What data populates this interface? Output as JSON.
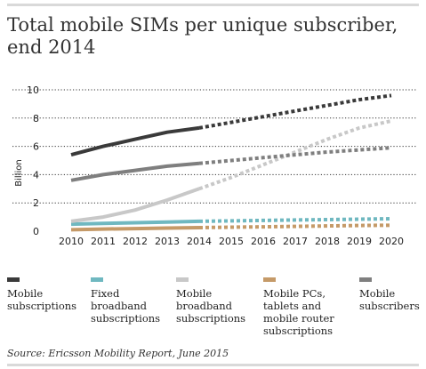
{
  "title": "Total mobile SIMs per unique subscriber, end 2014",
  "source": "Source: Ericsson Mobility Report, June 2015",
  "chart_data": {
    "type": "line",
    "title": "Total mobile SIMs per unique subscriber, end 2014",
    "ylabel": "Billion",
    "xlabel": "",
    "ylim": [
      0,
      10
    ],
    "yticks": [
      0,
      2,
      4,
      6,
      8,
      10
    ],
    "x": [
      2010,
      2011,
      2012,
      2013,
      2014,
      2015,
      2016,
      2017,
      2018,
      2019,
      2020
    ],
    "x_labels": [
      "2010",
      "2011",
      "2012",
      "2013",
      "2014",
      "2015",
      "2016",
      "2017",
      "2018",
      "2019",
      "2020"
    ],
    "grid": "horizontal-dotted",
    "legend_position": "bottom",
    "solid_until": 2014,
    "forecast_from": 2014,
    "series": [
      {
        "name": "Mobile subscriptions",
        "color": "#3a3a3a",
        "values": [
          5.4,
          6.0,
          6.5,
          7.0,
          7.3,
          7.7,
          8.1,
          8.5,
          8.9,
          9.3,
          9.6
        ]
      },
      {
        "name": "Fixed broadband subscriptions",
        "color": "#6fb8c0",
        "values": [
          0.5,
          0.55,
          0.6,
          0.65,
          0.7,
          0.73,
          0.76,
          0.79,
          0.82,
          0.85,
          0.88
        ]
      },
      {
        "name": "Mobile broadband subscriptions",
        "color": "#c8c8c8",
        "values": [
          0.7,
          1.0,
          1.5,
          2.2,
          3.0,
          3.8,
          4.7,
          5.6,
          6.5,
          7.3,
          7.8
        ]
      },
      {
        "name": "Mobile PCs, tablets and mobile router subscriptions",
        "color": "#c59a68",
        "values": [
          0.1,
          0.15,
          0.18,
          0.22,
          0.25,
          0.28,
          0.31,
          0.34,
          0.37,
          0.4,
          0.42
        ]
      },
      {
        "name": "Mobile subscribers",
        "color": "#7f7f7f",
        "values": [
          3.6,
          4.0,
          4.3,
          4.6,
          4.8,
          5.0,
          5.2,
          5.4,
          5.6,
          5.75,
          5.9
        ]
      }
    ]
  },
  "legend": [
    {
      "line1": "Mobile",
      "line2": "subscriptions",
      "line3": "",
      "color": "#3a3a3a"
    },
    {
      "line1": "Fixed",
      "line2": "broadband",
      "line3": "subscriptions",
      "color": "#6fb8c0"
    },
    {
      "line1": "Mobile",
      "line2": "broadband",
      "line3": "subscriptions",
      "color": "#c8c8c8"
    },
    {
      "line1": "Mobile PCs,",
      "line2": "tablets and",
      "line3": "mobile router",
      "line4": "subscriptions",
      "color": "#c59a68"
    },
    {
      "line1": "Mobile",
      "line2": "subscribers",
      "line3": "",
      "color": "#7f7f7f"
    }
  ]
}
